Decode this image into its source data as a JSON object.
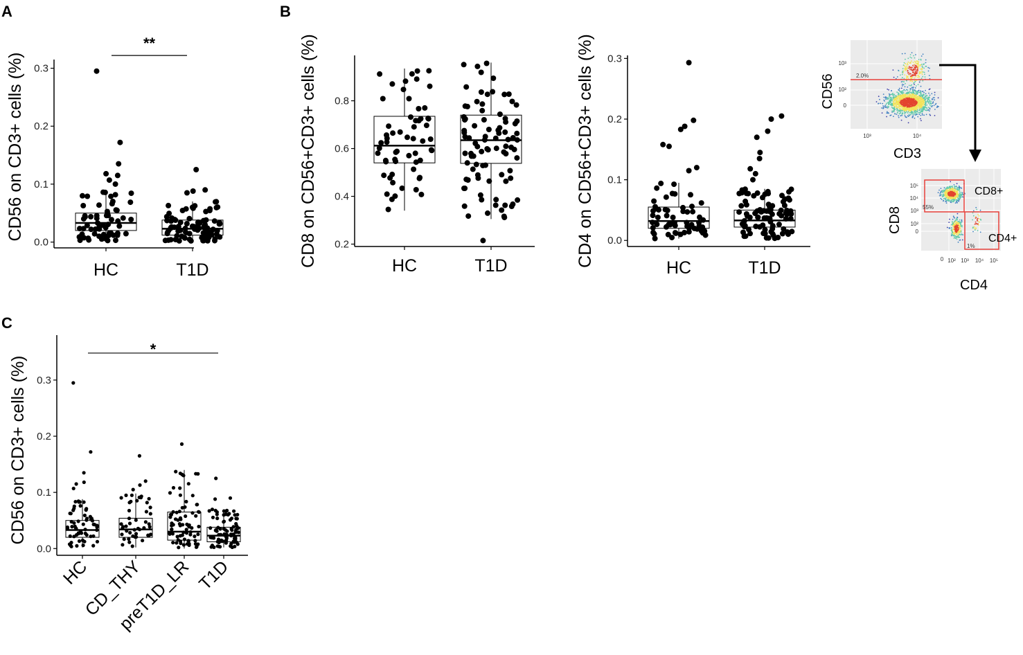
{
  "panels": {
    "a": {
      "letter": "A",
      "significance": "**"
    },
    "b": {
      "letter": "B"
    },
    "c": {
      "letter": "C",
      "significance": "*"
    }
  },
  "gating": {
    "top_xlabel": "CD3",
    "top_ylabel": "CD56",
    "top_gate_pct": "2.0%",
    "top_xticks": [
      "10³",
      "10⁴"
    ],
    "top_yticks": [
      "10³",
      "10²",
      "0"
    ],
    "bottom_xlabel": "CD4",
    "bottom_ylabel": "CD8",
    "cd8_gate_label": "CD8+",
    "cd4_gate_label": "CD4+",
    "cd8_gate_pct": "55%",
    "cd4_gate_pct": "1%",
    "bottom_xticks": [
      "0",
      "10²",
      "10³",
      "10⁴",
      "10⁵"
    ],
    "bottom_yticks": [
      "10⁵",
      "10⁴",
      "10³",
      "10²",
      "0"
    ]
  },
  "colors": {
    "points": "#000000",
    "gate": "#e8403a",
    "density_low": "#3b3ba8",
    "density_mid": "#f2e35a",
    "density_high": "#e3442f"
  },
  "chart_data": [
    {
      "id": "A",
      "type": "box+scatter",
      "ylabel": "CD56 on CD3+ cells (%)",
      "xlabel": "",
      "categories": [
        "HC",
        "T1D"
      ],
      "yticks": [
        "0.0",
        "0.1",
        "0.2",
        "0.3"
      ],
      "ylim": [
        -0.01,
        0.315
      ],
      "boxes": [
        {
          "name": "HC",
          "min": 0.002,
          "q1": 0.02,
          "median": 0.033,
          "q3": 0.05,
          "max": 0.088
        },
        {
          "name": "T1D",
          "min": 0.002,
          "q1": 0.012,
          "median": 0.023,
          "q3": 0.038,
          "max": 0.07
        }
      ],
      "outliers": [
        {
          "category": "HC",
          "values": [
            0.295,
            0.172,
            0.135,
            0.118,
            0.115,
            0.107,
            0.1
          ]
        },
        {
          "category": "T1D",
          "values": [
            0.125,
            0.09,
            0.088,
            0.085
          ]
        }
      ],
      "n_points": [
        60,
        90
      ],
      "significance": {
        "from": "HC",
        "to": "T1D",
        "label": "**",
        "y": 0.322
      }
    },
    {
      "id": "B1",
      "type": "box+scatter",
      "ylabel": "CD8 on CD56+CD3+ cells (%)",
      "xlabel": "",
      "categories": [
        "HC",
        "T1D"
      ],
      "yticks": [
        "0.2",
        "0.4",
        "0.6",
        "0.8"
      ],
      "ylim": [
        0.19,
        0.99
      ],
      "boxes": [
        {
          "name": "HC",
          "min": 0.34,
          "q1": 0.54,
          "median": 0.612,
          "q3": 0.735,
          "max": 0.935
        },
        {
          "name": "T1D",
          "min": 0.305,
          "q1": 0.538,
          "median": 0.635,
          "q3": 0.74,
          "max": 0.96
        }
      ],
      "outliers": [
        {
          "category": "HC",
          "values": []
        },
        {
          "category": "T1D",
          "values": [
            0.215
          ]
        }
      ],
      "n_points": [
        60,
        90
      ]
    },
    {
      "id": "B2",
      "type": "box+scatter",
      "ylabel": "CD4 on CD56+CD3+ cells (%)",
      "xlabel": "",
      "categories": [
        "HC",
        "T1D"
      ],
      "yticks": [
        "0.0",
        "0.1",
        "0.2",
        "0.3"
      ],
      "ylim": [
        -0.01,
        0.305
      ],
      "boxes": [
        {
          "name": "HC",
          "min": 0.003,
          "q1": 0.02,
          "median": 0.032,
          "q3": 0.055,
          "max": 0.095
        },
        {
          "name": "T1D",
          "min": 0.003,
          "q1": 0.022,
          "median": 0.033,
          "q3": 0.05,
          "max": 0.085
        }
      ],
      "outliers": [
        {
          "category": "HC",
          "values": [
            0.293,
            0.198,
            0.188,
            0.183,
            0.158,
            0.155,
            0.12,
            0.115
          ]
        },
        {
          "category": "T1D",
          "values": [
            0.205,
            0.2,
            0.18,
            0.17,
            0.145,
            0.135,
            0.118,
            0.11,
            0.1
          ]
        }
      ],
      "n_points": [
        60,
        90
      ]
    },
    {
      "id": "C",
      "type": "box+scatter",
      "ylabel": "CD56 on CD3+ cells (%)",
      "xlabel": "",
      "categories": [
        "HC",
        "CD_THY",
        "preT1D_LR",
        "T1D"
      ],
      "yticks": [
        "0.0",
        "0.1",
        "0.2",
        "0.3"
      ],
      "ylim": [
        -0.012,
        0.38
      ],
      "boxes": [
        {
          "name": "HC",
          "min": 0.002,
          "q1": 0.02,
          "median": 0.033,
          "q3": 0.05,
          "max": 0.088
        },
        {
          "name": "CD_THY",
          "min": 0.002,
          "q1": 0.02,
          "median": 0.034,
          "q3": 0.054,
          "max": 0.098
        },
        {
          "name": "preT1D_LR",
          "min": 0.0,
          "q1": 0.015,
          "median": 0.03,
          "q3": 0.065,
          "max": 0.14
        },
        {
          "name": "T1D",
          "min": 0.002,
          "q1": 0.012,
          "median": 0.023,
          "q3": 0.038,
          "max": 0.07
        }
      ],
      "outliers": [
        {
          "category": "HC",
          "values": [
            0.295,
            0.172,
            0.135,
            0.118,
            0.115,
            0.107
          ]
        },
        {
          "category": "CD_THY",
          "values": [
            0.165,
            0.12,
            0.113,
            0.105
          ]
        },
        {
          "category": "preT1D_LR",
          "values": [
            0.186,
            0.137,
            0.13
          ]
        },
        {
          "category": "T1D",
          "values": [
            0.125,
            0.09,
            0.088
          ]
        }
      ],
      "n_points": [
        60,
        45,
        75,
        90
      ],
      "significance": {
        "from": "HC",
        "to": "T1D",
        "label": "*",
        "y": 0.348
      }
    }
  ]
}
